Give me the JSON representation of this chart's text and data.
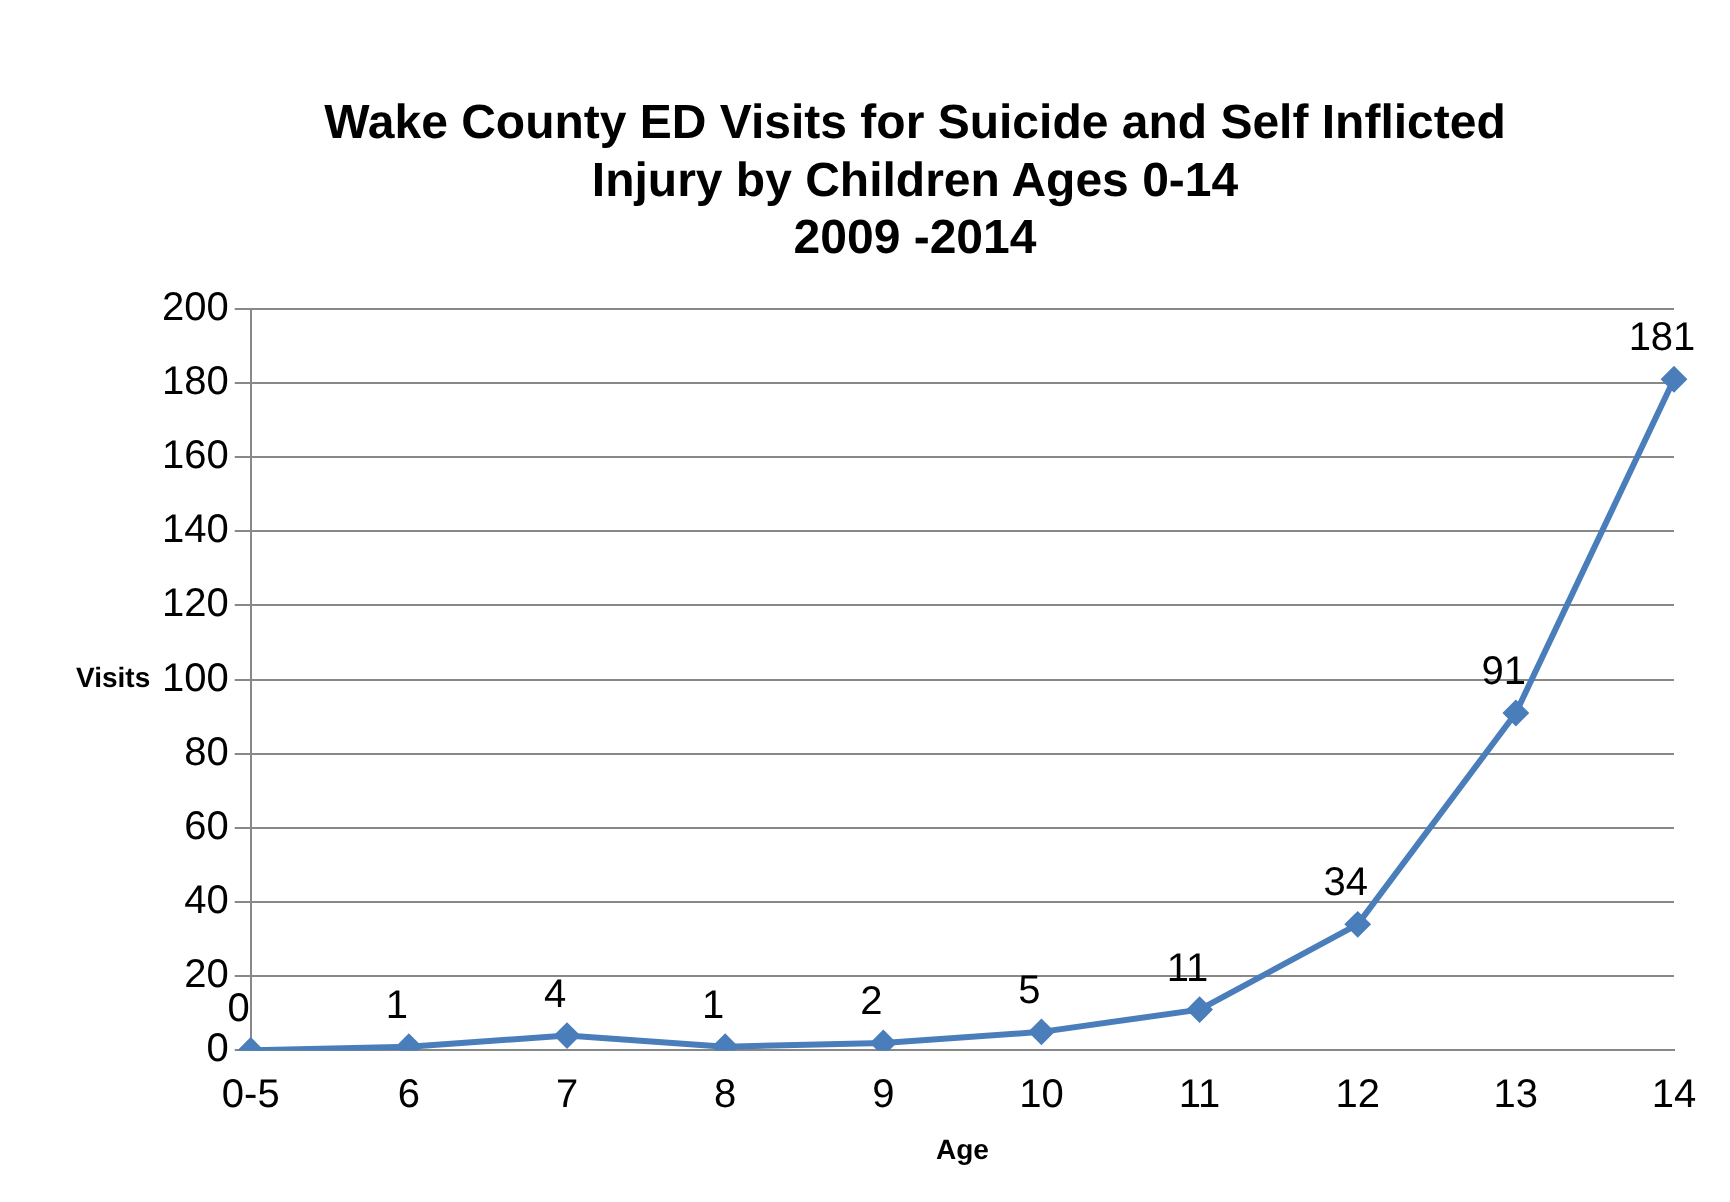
{
  "chart_data": {
    "type": "line",
    "title": "Wake County ED Visits for Suicide and Self Inflicted\nInjury by Children Ages 0-14\n2009 -2014",
    "xlabel": "Age",
    "ylabel": "Visits",
    "categories": [
      "0-5",
      "6",
      "7",
      "8",
      "9",
      "10",
      "11",
      "12",
      "13",
      "14"
    ],
    "series": [
      {
        "color": "#4a7ebb",
        "values": [
          0,
          1,
          4,
          1,
          2,
          5,
          11,
          34,
          91,
          181
        ]
      }
    ],
    "ylim": [
      0,
      200
    ],
    "yticks": [
      0,
      20,
      40,
      60,
      80,
      100,
      120,
      140,
      160,
      180,
      200
    ],
    "grid": "y",
    "marker": "diamond",
    "line_style": "solid",
    "data_labels": true
  }
}
